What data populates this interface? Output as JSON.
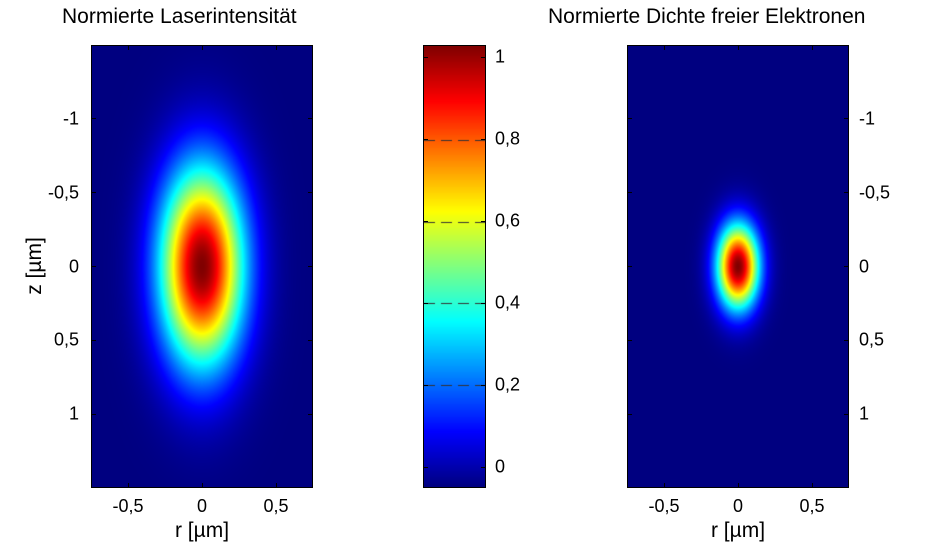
{
  "chart_data": [
    {
      "type": "heatmap",
      "title": "Normierte Laserintensität",
      "xlabel": "r [µm]",
      "ylabel": "z [µm]",
      "xlim": [
        -0.75,
        0.75
      ],
      "ylim": [
        1.5,
        -1.5
      ],
      "y_reversed": true,
      "x_ticks": [
        -0.5,
        0,
        0.5
      ],
      "x_tick_labels": [
        "-0,5",
        "0",
        "0,5"
      ],
      "y_ticks": [
        -1,
        -0.5,
        0,
        0.5,
        1
      ],
      "y_tick_labels": [
        "-1",
        "-0,5",
        "0",
        "0,5",
        "1"
      ],
      "y_tick_side": "left",
      "colormap": "jet",
      "distribution": {
        "shape": "gaussian",
        "center_r": 0,
        "center_z": 0,
        "sigma_r": 0.2,
        "sigma_z": 0.47,
        "peak": 1
      }
    },
    {
      "type": "colorbar",
      "colormap": "jet",
      "clim": [
        -0.05,
        1.03
      ],
      "ticks": [
        1,
        0.8,
        0.6,
        0.4,
        0.2,
        0
      ],
      "tick_labels": [
        "1",
        "0,8",
        "0,6",
        "0,4",
        "0,2",
        "0"
      ],
      "dashed_levels": [
        0.8,
        0.6,
        0.4,
        0.2
      ]
    },
    {
      "type": "heatmap",
      "title": "Normierte Dichte freier Elektronen",
      "xlabel": "r [µm]",
      "ylabel": "",
      "xlim": [
        -0.75,
        0.75
      ],
      "ylim": [
        1.5,
        -1.5
      ],
      "y_reversed": true,
      "x_ticks": [
        -0.5,
        0,
        0.5
      ],
      "x_tick_labels": [
        "-0,5",
        "0",
        "0,5"
      ],
      "y_ticks": [
        -1,
        -0.5,
        0,
        0.5,
        1
      ],
      "y_tick_labels": [
        "-1",
        "-0,5",
        "0",
        "0,5",
        "1"
      ],
      "y_tick_side": "right",
      "colormap": "jet",
      "distribution": {
        "shape": "gaussian",
        "center_r": 0,
        "center_z": 0,
        "sigma_r": 0.1,
        "sigma_z": 0.2,
        "peak": 1
      }
    }
  ]
}
